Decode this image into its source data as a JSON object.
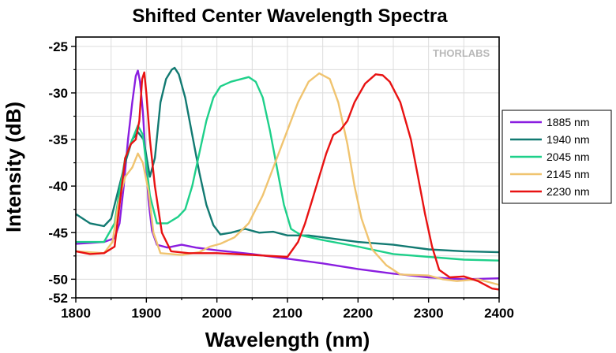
{
  "chart_data": {
    "type": "line",
    "title": "Shifted Center Wavelength Spectra",
    "xlabel": "Wavelength (nm)",
    "ylabel": "Intensity (dB)",
    "xlim": [
      1800,
      2400
    ],
    "ylim": [
      -52,
      -24
    ],
    "xticks": [
      1800,
      1900,
      2000,
      2100,
      2200,
      2300,
      2400
    ],
    "yticks": [
      -25,
      -30,
      -35,
      -40,
      -45,
      -50,
      -52
    ],
    "grid": true,
    "legend_position": "right",
    "watermark": "THORLABS",
    "series": [
      {
        "name": "1885 nm",
        "color": "#8a1ee0",
        "points": [
          [
            1800,
            -46.2
          ],
          [
            1820,
            -46.1
          ],
          [
            1840,
            -46.0
          ],
          [
            1855,
            -45.6
          ],
          [
            1862,
            -44.0
          ],
          [
            1868,
            -40.0
          ],
          [
            1874,
            -35.0
          ],
          [
            1880,
            -31.0
          ],
          [
            1885,
            -28.2
          ],
          [
            1888,
            -27.6
          ],
          [
            1891,
            -28.8
          ],
          [
            1895,
            -32.0
          ],
          [
            1899,
            -37.0
          ],
          [
            1903,
            -41.5
          ],
          [
            1908,
            -44.8
          ],
          [
            1915,
            -46.3
          ],
          [
            1930,
            -46.6
          ],
          [
            1950,
            -46.3
          ],
          [
            1970,
            -46.6
          ],
          [
            2000,
            -46.9
          ],
          [
            2050,
            -47.3
          ],
          [
            2100,
            -47.8
          ],
          [
            2150,
            -48.3
          ],
          [
            2200,
            -48.9
          ],
          [
            2250,
            -49.4
          ],
          [
            2300,
            -49.8
          ],
          [
            2350,
            -50.0
          ],
          [
            2400,
            -49.9
          ]
        ]
      },
      {
        "name": "1940 nm",
        "color": "#127a72",
        "points": [
          [
            1800,
            -43.0
          ],
          [
            1820,
            -44.0
          ],
          [
            1840,
            -44.3
          ],
          [
            1850,
            -43.5
          ],
          [
            1860,
            -40.5
          ],
          [
            1870,
            -37.5
          ],
          [
            1880,
            -35.0
          ],
          [
            1888,
            -34.2
          ],
          [
            1896,
            -35.0
          ],
          [
            1905,
            -39.0
          ],
          [
            1912,
            -37.0
          ],
          [
            1920,
            -31.0
          ],
          [
            1928,
            -28.5
          ],
          [
            1936,
            -27.5
          ],
          [
            1940,
            -27.3
          ],
          [
            1946,
            -28.0
          ],
          [
            1955,
            -30.5
          ],
          [
            1965,
            -34.5
          ],
          [
            1975,
            -38.5
          ],
          [
            1985,
            -42.0
          ],
          [
            1995,
            -44.2
          ],
          [
            2005,
            -45.2
          ],
          [
            2020,
            -45.0
          ],
          [
            2040,
            -44.6
          ],
          [
            2060,
            -45.0
          ],
          [
            2080,
            -44.9
          ],
          [
            2100,
            -45.3
          ],
          [
            2130,
            -45.3
          ],
          [
            2160,
            -45.6
          ],
          [
            2200,
            -46.0
          ],
          [
            2250,
            -46.3
          ],
          [
            2300,
            -46.8
          ],
          [
            2350,
            -47.0
          ],
          [
            2400,
            -47.1
          ]
        ]
      },
      {
        "name": "2045 nm",
        "color": "#1ed08a",
        "points": [
          [
            1800,
            -46.0
          ],
          [
            1840,
            -46.0
          ],
          [
            1855,
            -44.0
          ],
          [
            1862,
            -40.5
          ],
          [
            1870,
            -37.0
          ],
          [
            1880,
            -35.0
          ],
          [
            1888,
            -33.5
          ],
          [
            1895,
            -34.5
          ],
          [
            1905,
            -41.0
          ],
          [
            1915,
            -44.0
          ],
          [
            1930,
            -44.0
          ],
          [
            1945,
            -43.3
          ],
          [
            1955,
            -42.5
          ],
          [
            1965,
            -40.0
          ],
          [
            1975,
            -36.5
          ],
          [
            1985,
            -33.0
          ],
          [
            1995,
            -30.5
          ],
          [
            2005,
            -29.3
          ],
          [
            2020,
            -28.8
          ],
          [
            2035,
            -28.5
          ],
          [
            2045,
            -28.3
          ],
          [
            2055,
            -28.8
          ],
          [
            2065,
            -30.5
          ],
          [
            2075,
            -34.0
          ],
          [
            2085,
            -38.0
          ],
          [
            2095,
            -42.0
          ],
          [
            2105,
            -44.6
          ],
          [
            2120,
            -45.3
          ],
          [
            2150,
            -45.8
          ],
          [
            2200,
            -46.5
          ],
          [
            2250,
            -47.3
          ],
          [
            2300,
            -47.6
          ],
          [
            2350,
            -47.9
          ],
          [
            2400,
            -48.0
          ]
        ]
      },
      {
        "name": "2145 nm",
        "color": "#f0c470",
        "points": [
          [
            1800,
            -47.0
          ],
          [
            1840,
            -47.2
          ],
          [
            1852,
            -46.0
          ],
          [
            1860,
            -42.0
          ],
          [
            1870,
            -39.0
          ],
          [
            1880,
            -38.0
          ],
          [
            1888,
            -36.5
          ],
          [
            1895,
            -37.5
          ],
          [
            1903,
            -40.5
          ],
          [
            1910,
            -45.0
          ],
          [
            1920,
            -47.2
          ],
          [
            1950,
            -47.4
          ],
          [
            1975,
            -47.1
          ],
          [
            1990,
            -46.5
          ],
          [
            2005,
            -46.2
          ],
          [
            2025,
            -45.5
          ],
          [
            2045,
            -44.0
          ],
          [
            2065,
            -41.0
          ],
          [
            2085,
            -37.0
          ],
          [
            2100,
            -34.0
          ],
          [
            2115,
            -31.0
          ],
          [
            2130,
            -28.8
          ],
          [
            2145,
            -27.9
          ],
          [
            2160,
            -28.5
          ],
          [
            2172,
            -31.0
          ],
          [
            2185,
            -35.5
          ],
          [
            2195,
            -40.0
          ],
          [
            2205,
            -43.5
          ],
          [
            2220,
            -46.8
          ],
          [
            2240,
            -48.5
          ],
          [
            2260,
            -49.5
          ],
          [
            2300,
            -49.6
          ],
          [
            2320,
            -50.0
          ],
          [
            2340,
            -50.2
          ],
          [
            2370,
            -50.0
          ],
          [
            2400,
            -50.6
          ]
        ]
      },
      {
        "name": "2230 nm",
        "color": "#e81212",
        "points": [
          [
            1800,
            -47.0
          ],
          [
            1820,
            -47.3
          ],
          [
            1840,
            -47.2
          ],
          [
            1855,
            -46.5
          ],
          [
            1862,
            -42.0
          ],
          [
            1870,
            -37.0
          ],
          [
            1878,
            -35.5
          ],
          [
            1885,
            -35.0
          ],
          [
            1890,
            -33.0
          ],
          [
            1894,
            -28.5
          ],
          [
            1897,
            -27.8
          ],
          [
            1900,
            -30.0
          ],
          [
            1905,
            -35.0
          ],
          [
            1912,
            -40.0
          ],
          [
            1922,
            -45.0
          ],
          [
            1935,
            -47.0
          ],
          [
            1960,
            -47.2
          ],
          [
            2000,
            -47.2
          ],
          [
            2050,
            -47.4
          ],
          [
            2100,
            -47.6
          ],
          [
            2115,
            -46.0
          ],
          [
            2125,
            -44.0
          ],
          [
            2135,
            -41.5
          ],
          [
            2145,
            -39.0
          ],
          [
            2155,
            -36.5
          ],
          [
            2165,
            -34.5
          ],
          [
            2175,
            -34.0
          ],
          [
            2185,
            -33.0
          ],
          [
            2195,
            -31.0
          ],
          [
            2210,
            -29.0
          ],
          [
            2225,
            -28.0
          ],
          [
            2235,
            -28.1
          ],
          [
            2245,
            -28.8
          ],
          [
            2260,
            -31.0
          ],
          [
            2275,
            -35.0
          ],
          [
            2285,
            -39.0
          ],
          [
            2295,
            -43.0
          ],
          [
            2305,
            -46.5
          ],
          [
            2315,
            -49.0
          ],
          [
            2330,
            -49.8
          ],
          [
            2350,
            -49.7
          ],
          [
            2370,
            -50.2
          ],
          [
            2390,
            -51.0
          ],
          [
            2400,
            -51.1
          ]
        ]
      }
    ]
  }
}
